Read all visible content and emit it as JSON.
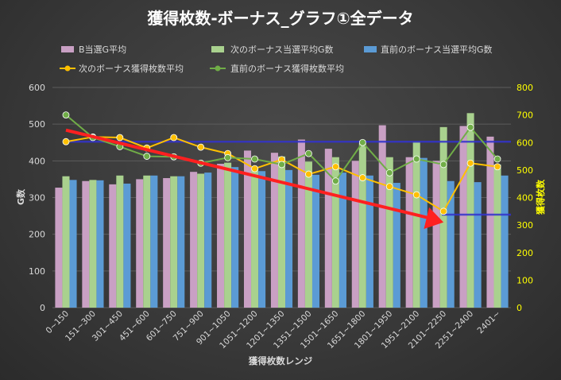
{
  "chart_data": {
    "type": "bar",
    "title": "獲得枚数-ボーナス_グラフ①全データ",
    "xlabel": "獲得枚数レンジ",
    "ylabel": "G数",
    "y2label": "獲得枚数",
    "ylim": [
      0,
      600
    ],
    "y2lim": [
      0,
      800
    ],
    "yticks": [
      0,
      100,
      200,
      300,
      400,
      500,
      600
    ],
    "y2ticks": [
      0,
      100,
      200,
      300,
      400,
      500,
      600,
      700,
      800
    ],
    "categories": [
      "0~150",
      "151~300",
      "301~450",
      "451~600",
      "601~750",
      "751~900",
      "901~1050",
      "1051~1200",
      "1201~1350",
      "1351~1500",
      "1501~1650",
      "1651~1800",
      "1801~1950",
      "1951~2100",
      "2101~2250",
      "2251~2400",
      "2401~"
    ],
    "series": [
      {
        "name": "B当選G平均",
        "kind": "bar",
        "axis": "left",
        "color": "#c9a0c4",
        "values": [
          327,
          345,
          336,
          350,
          353,
          370,
          392,
          428,
          422,
          458,
          433,
          400,
          497,
          410,
          400,
          495,
          466
        ]
      },
      {
        "name": "次のボーナス当選平均G数",
        "kind": "bar",
        "axis": "left",
        "color": "#a9d18e",
        "values": [
          358,
          348,
          360,
          360,
          358,
          365,
          395,
          380,
          412,
          398,
          410,
          448,
          410,
          452,
          492,
          530,
          390
        ]
      },
      {
        "name": "直前のボーナス当選平均G数",
        "kind": "bar",
        "axis": "left",
        "color": "#5b9bd5",
        "values": [
          348,
          347,
          338,
          360,
          358,
          368,
          383,
          372,
          375,
          362,
          368,
          360,
          340,
          408,
          345,
          342,
          360
        ]
      },
      {
        "name": "次のボーナス獲得枚数平均",
        "kind": "line",
        "axis": "right",
        "color": "#ffc000",
        "values": [
          603,
          620,
          618,
          580,
          618,
          583,
          560,
          505,
          538,
          485,
          512,
          472,
          440,
          410,
          350,
          525,
          512
        ]
      },
      {
        "name": "直前のボーナス獲得枚数平均",
        "kind": "line",
        "axis": "right",
        "color": "#70ad47",
        "values": [
          700,
          618,
          585,
          550,
          548,
          525,
          545,
          540,
          520,
          560,
          460,
          600,
          490,
          540,
          520,
          655,
          540
        ]
      }
    ],
    "reference_lines": [
      {
        "name": "blue-reference-line",
        "axis": "right",
        "from_index": 0,
        "to_index": 16,
        "value": 603,
        "color": "#3333cc"
      },
      {
        "name": "blue-reference-line-right",
        "axis": "right",
        "from_index": 14,
        "to_index": 16,
        "value": 338,
        "color": "#3333cc"
      }
    ],
    "annotation_arrow": {
      "color": "#ff2020",
      "from": {
        "index": 0,
        "value": 645
      },
      "to": {
        "index": 14,
        "value": 310
      }
    },
    "legend_position": "top"
  }
}
